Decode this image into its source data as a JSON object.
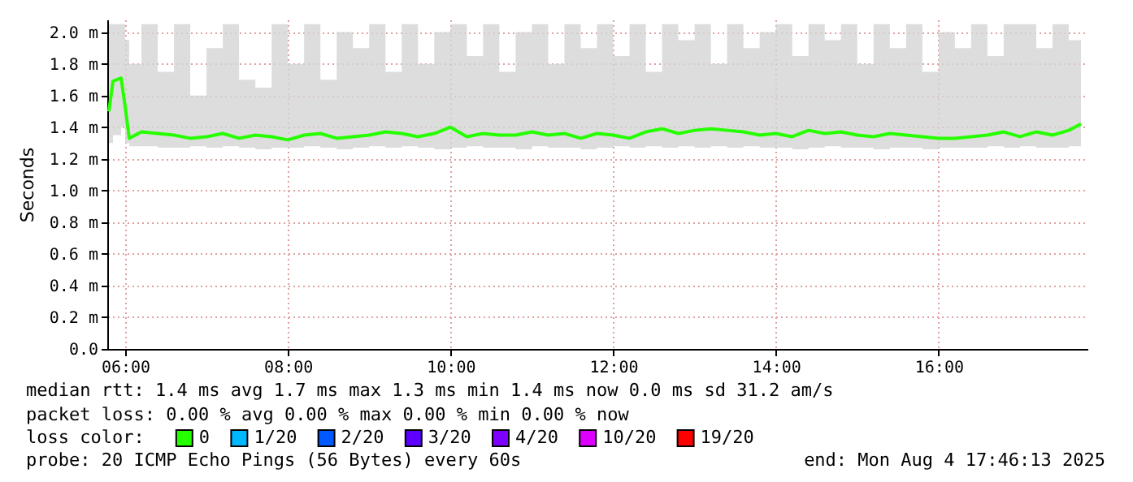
{
  "chart_data": {
    "type": "line",
    "ylabel": "Seconds",
    "x": [
      5.8,
      5.85,
      5.95,
      6.0,
      6.05,
      6.2,
      6.4,
      6.6,
      6.8,
      7.0,
      7.2,
      7.4,
      7.6,
      7.8,
      8.0,
      8.2,
      8.4,
      8.6,
      8.8,
      9.0,
      9.2,
      9.4,
      9.6,
      9.8,
      10.0,
      10.2,
      10.4,
      10.6,
      10.8,
      11.0,
      11.2,
      11.4,
      11.6,
      11.8,
      12.0,
      12.2,
      12.4,
      12.6,
      12.8,
      13.0,
      13.2,
      13.4,
      13.6,
      13.8,
      14.0,
      14.2,
      14.4,
      14.6,
      14.8,
      15.0,
      15.2,
      15.4,
      15.6,
      15.8,
      16.0,
      16.2,
      16.4,
      16.6,
      16.8,
      17.0,
      17.2,
      17.4,
      17.6,
      17.75
    ],
    "series": [
      {
        "name": "0",
        "color": "#26ff00",
        "values": [
          1.5,
          1.69,
          1.71,
          1.53,
          1.33,
          1.37,
          1.36,
          1.35,
          1.33,
          1.34,
          1.36,
          1.33,
          1.35,
          1.34,
          1.32,
          1.35,
          1.36,
          1.33,
          1.34,
          1.35,
          1.37,
          1.36,
          1.34,
          1.36,
          1.4,
          1.34,
          1.36,
          1.35,
          1.35,
          1.37,
          1.35,
          1.36,
          1.33,
          1.36,
          1.35,
          1.33,
          1.37,
          1.39,
          1.36,
          1.38,
          1.39,
          1.38,
          1.37,
          1.35,
          1.36,
          1.34,
          1.38,
          1.36,
          1.37,
          1.35,
          1.34,
          1.36,
          1.35,
          1.34,
          1.33,
          1.33,
          1.34,
          1.35,
          1.37,
          1.34,
          1.37,
          1.35,
          1.38,
          1.42
        ],
        "lower": [
          1.3,
          1.35,
          1.4,
          1.3,
          1.28,
          1.28,
          1.27,
          1.27,
          1.28,
          1.27,
          1.28,
          1.27,
          1.26,
          1.27,
          1.27,
          1.28,
          1.27,
          1.26,
          1.27,
          1.28,
          1.27,
          1.28,
          1.27,
          1.26,
          1.27,
          1.28,
          1.27,
          1.27,
          1.26,
          1.28,
          1.27,
          1.27,
          1.26,
          1.27,
          1.28,
          1.27,
          1.28,
          1.27,
          1.28,
          1.27,
          1.28,
          1.27,
          1.28,
          1.27,
          1.27,
          1.26,
          1.27,
          1.28,
          1.27,
          1.27,
          1.26,
          1.27,
          1.27,
          1.26,
          1.27,
          1.27,
          1.27,
          1.28,
          1.27,
          1.28,
          1.27,
          1.27,
          1.28,
          1.3
        ],
        "upper": [
          2.05,
          2.05,
          2.05,
          1.95,
          1.8,
          2.05,
          1.75,
          2.05,
          1.6,
          1.9,
          2.05,
          1.7,
          1.65,
          2.05,
          1.8,
          2.05,
          1.7,
          2.0,
          1.9,
          2.05,
          1.75,
          2.05,
          1.8,
          2.0,
          2.05,
          1.85,
          2.05,
          1.75,
          2.0,
          2.05,
          1.8,
          2.05,
          1.9,
          2.05,
          1.85,
          2.05,
          1.75,
          2.05,
          1.95,
          2.05,
          1.8,
          2.05,
          1.9,
          2.0,
          2.05,
          1.85,
          2.05,
          1.95,
          2.05,
          1.8,
          2.05,
          1.9,
          2.05,
          1.75,
          2.0,
          1.9,
          2.05,
          1.85,
          2.05,
          2.05,
          1.9,
          2.05,
          1.95,
          2.05
        ]
      },
      {
        "name": "1/20",
        "color": "#00b8ff",
        "values": [
          null,
          null,
          null,
          null,
          null,
          null,
          null,
          null,
          null,
          null,
          null,
          null,
          null,
          null,
          null,
          null,
          null,
          null,
          null,
          null,
          null,
          null,
          null,
          null,
          null,
          null,
          null,
          null,
          null,
          null,
          null,
          null,
          null,
          null,
          null,
          null,
          null,
          null,
          null,
          null,
          null,
          null,
          null,
          null,
          null,
          null,
          null,
          null,
          null,
          null,
          null,
          null,
          null,
          null,
          null,
          null,
          null,
          null,
          null,
          null,
          null,
          null,
          null,
          null
        ]
      },
      {
        "name": "2/20",
        "color": "#0059ff",
        "values": [
          null,
          null,
          null,
          null,
          null,
          null,
          null,
          null,
          null,
          null,
          null,
          null,
          null,
          null,
          null,
          null,
          null,
          null,
          null,
          null,
          null,
          null,
          null,
          null,
          null,
          null,
          null,
          null,
          null,
          null,
          null,
          null,
          null,
          null,
          null,
          null,
          null,
          null,
          null,
          null,
          null,
          null,
          null,
          null,
          null,
          null,
          null,
          null,
          null,
          null,
          null,
          null,
          null,
          null,
          null,
          null,
          null,
          null,
          null,
          null,
          null,
          null,
          null,
          null
        ]
      },
      {
        "name": "3/20",
        "color": "#5e00ff",
        "values": [
          null,
          null,
          null,
          null,
          null,
          null,
          null,
          null,
          null,
          null,
          null,
          null,
          null,
          null,
          null,
          null,
          null,
          null,
          null,
          null,
          null,
          null,
          null,
          null,
          null,
          null,
          null,
          null,
          null,
          null,
          null,
          null,
          null,
          null,
          null,
          null,
          null,
          null,
          null,
          null,
          null,
          null,
          null,
          null,
          null,
          null,
          null,
          null,
          null,
          null,
          null,
          null,
          null,
          null,
          null,
          null,
          null,
          null,
          null,
          null,
          null,
          null,
          null,
          null
        ]
      },
      {
        "name": "4/20",
        "color": "#7e00ff",
        "values": [
          null,
          null,
          null,
          null,
          null,
          null,
          null,
          null,
          null,
          null,
          null,
          null,
          null,
          null,
          null,
          null,
          null,
          null,
          null,
          null,
          null,
          null,
          null,
          null,
          null,
          null,
          null,
          null,
          null,
          null,
          null,
          null,
          null,
          null,
          null,
          null,
          null,
          null,
          null,
          null,
          null,
          null,
          null,
          null,
          null,
          null,
          null,
          null,
          null,
          null,
          null,
          null,
          null,
          null,
          null,
          null,
          null,
          null,
          null,
          null,
          null,
          null,
          null,
          null
        ]
      },
      {
        "name": "10/20",
        "color": "#dd00ff",
        "values": [
          null,
          null,
          null,
          null,
          null,
          null,
          null,
          null,
          null,
          null,
          null,
          null,
          null,
          null,
          null,
          null,
          null,
          null,
          null,
          null,
          null,
          null,
          null,
          null,
          null,
          null,
          null,
          null,
          null,
          null,
          null,
          null,
          null,
          null,
          null,
          null,
          null,
          null,
          null,
          null,
          null,
          null,
          null,
          null,
          null,
          null,
          null,
          null,
          null,
          null,
          null,
          null,
          null,
          null,
          null,
          null,
          null,
          null,
          null,
          null,
          null,
          null,
          null,
          null
        ]
      },
      {
        "name": "19/20",
        "color": "#ff0000",
        "values": [
          null,
          null,
          null,
          null,
          null,
          null,
          null,
          null,
          null,
          null,
          null,
          null,
          null,
          null,
          null,
          null,
          null,
          null,
          null,
          null,
          null,
          null,
          null,
          null,
          null,
          null,
          null,
          null,
          null,
          null,
          null,
          null,
          null,
          null,
          null,
          null,
          null,
          null,
          null,
          null,
          null,
          null,
          null,
          null,
          null,
          null,
          null,
          null,
          null,
          null,
          null,
          null,
          null,
          null,
          null,
          null,
          null,
          null,
          null,
          null,
          null,
          null,
          null,
          null
        ]
      }
    ],
    "legend_title": "loss color:",
    "legend": "bottom",
    "xlim": [
      5.78,
      17.83
    ],
    "xticks": [
      {
        "value": 6,
        "label": "06:00"
      },
      {
        "value": 8,
        "label": "08:00"
      },
      {
        "value": 10,
        "label": "10:00"
      },
      {
        "value": 12,
        "label": "12:00"
      },
      {
        "value": 14,
        "label": "14:00"
      },
      {
        "value": 16,
        "label": "16:00"
      }
    ],
    "ylim": [
      0,
      2.08
    ],
    "yticks": [
      {
        "value": 0,
        "label": "0.0"
      },
      {
        "value": 0.2,
        "label": "0.2 m"
      },
      {
        "value": 0.4,
        "label": "0.4 m"
      },
      {
        "value": 0.6,
        "label": "0.6 m"
      },
      {
        "value": 0.8,
        "label": "0.8 m"
      },
      {
        "value": 1.0,
        "label": "1.0 m"
      },
      {
        "value": 1.2,
        "label": "1.2 m"
      },
      {
        "value": 1.4,
        "label": "1.4 m"
      },
      {
        "value": 1.6,
        "label": "1.6 m"
      },
      {
        "value": 1.8,
        "label": "1.8 m"
      },
      {
        "value": 2.0,
        "label": "2.0 m"
      }
    ],
    "grid": true,
    "marker": "none",
    "line_style": "solid",
    "annotations": [
      "median rtt:  1.4 ms avg  1.7 ms max  1.3 ms min  1.4 ms now  0.0 ms sd  31.2   am/s",
      "packet loss: 0.00 % avg  0.00 % max  0.00 % min  0.00 % now",
      "probe:       20 ICMP Echo Pings (56 Bytes) every 60s",
      "end: Mon Aug  4 17:46:13 2025"
    ]
  }
}
